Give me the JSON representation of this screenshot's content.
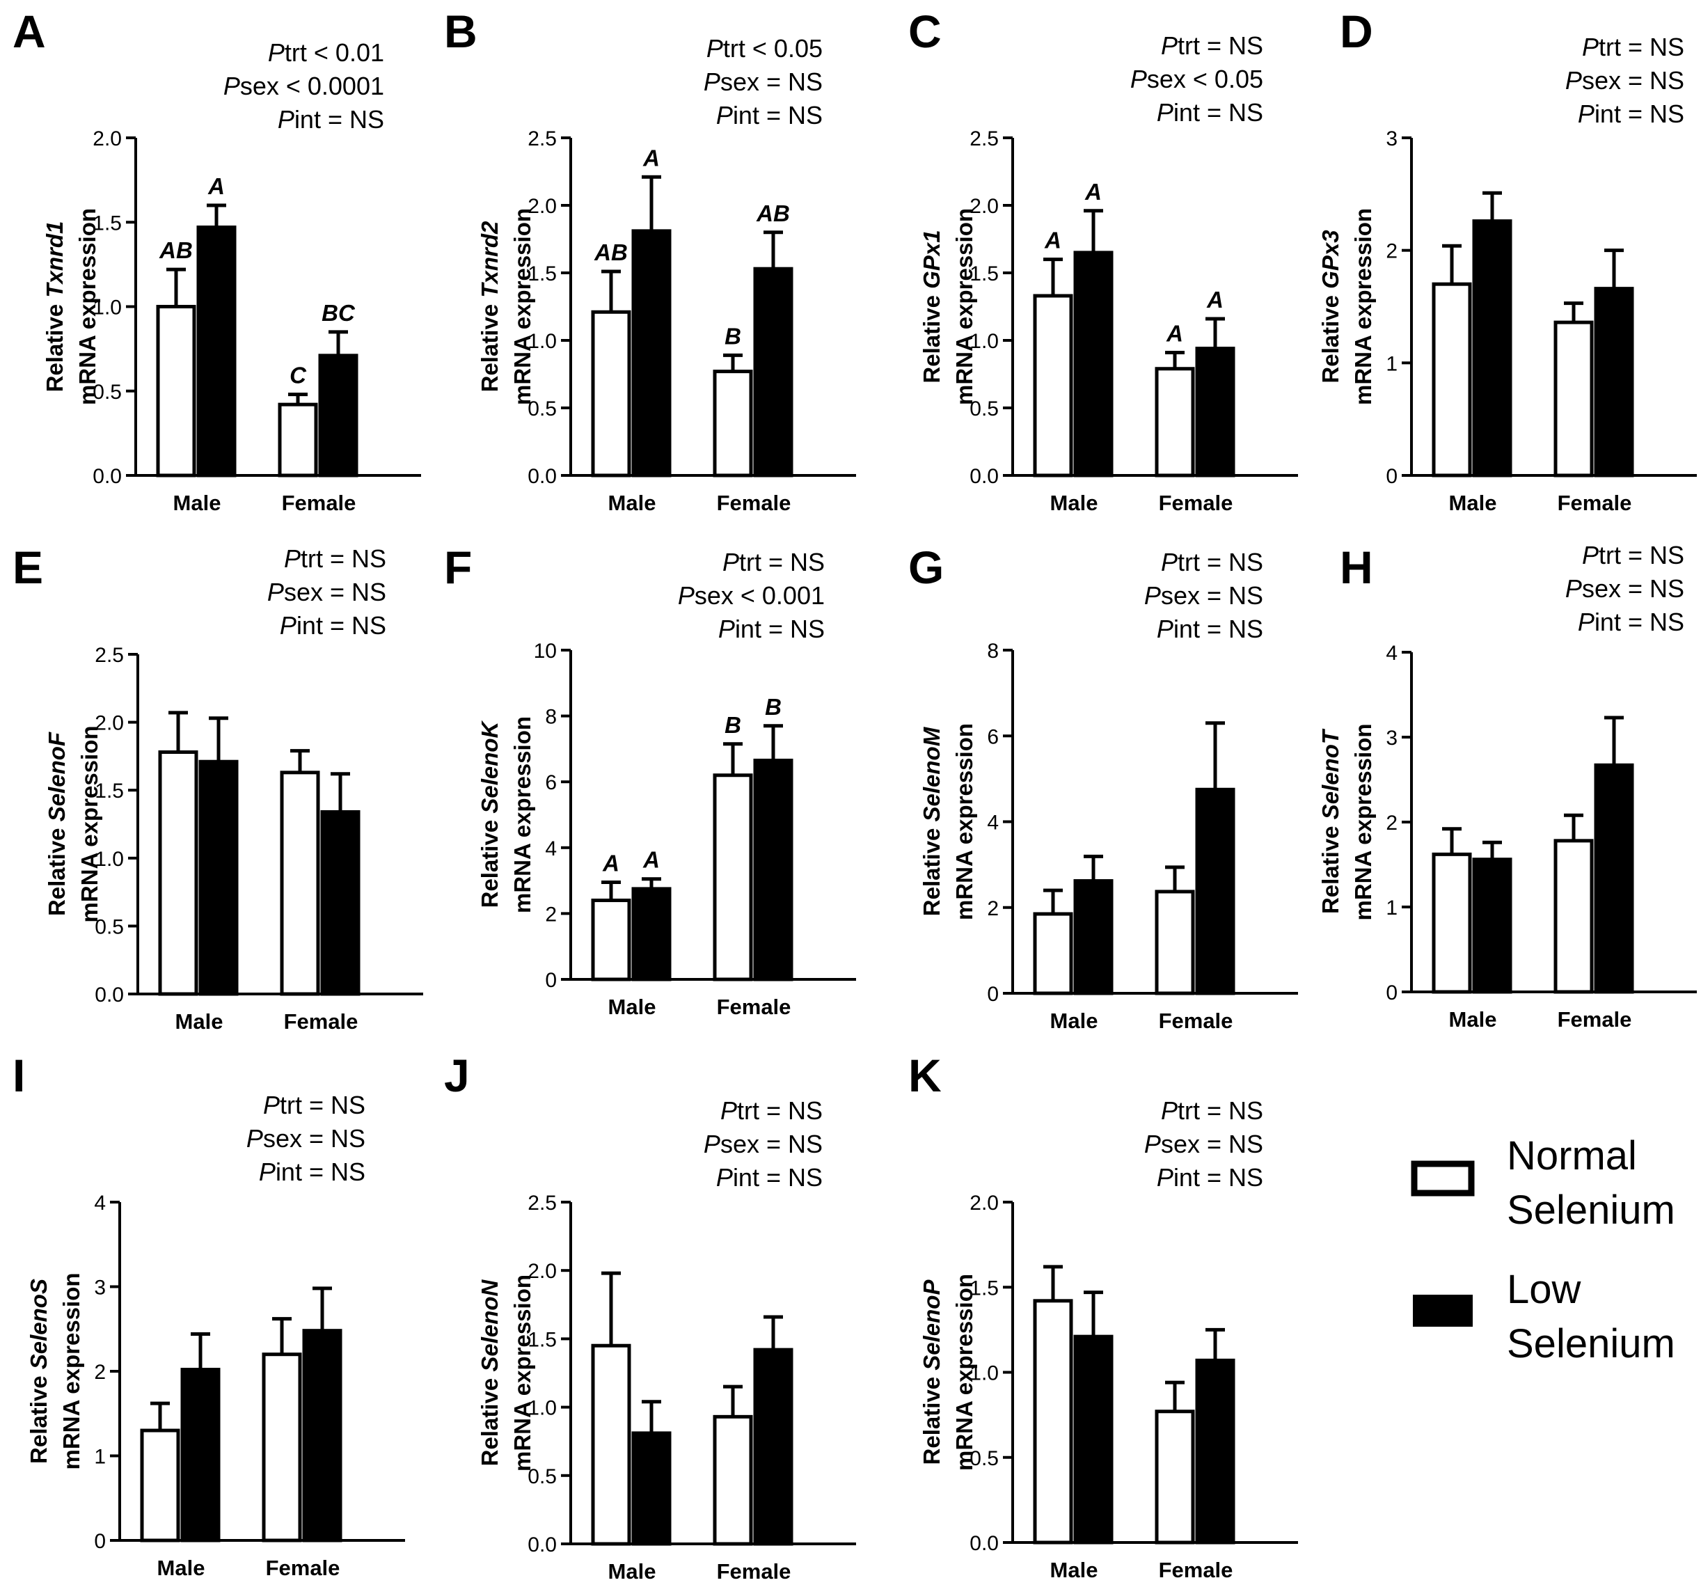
{
  "series": [
    {
      "name": "Normal Selenium",
      "legend_lines": [
        "Normal",
        "Selenium"
      ],
      "fill": "#ffffff",
      "stroke": "#000000"
    },
    {
      "name": "Low Selenium",
      "legend_lines": [
        "Low",
        "Selenium"
      ],
      "fill": "#000000",
      "stroke": "#000000"
    }
  ],
  "chart_data": [
    {
      "panel": "A",
      "type": "bar",
      "gene": "Txnrd1",
      "ylabel_prefix": "Relative ",
      "ylabel_line2": "mRNA expression",
      "categories": [
        "Male",
        "Female"
      ],
      "ylim": [
        0,
        2.0
      ],
      "yticks": [
        "0.0",
        "0.5",
        "1.0",
        "1.5",
        "2.0"
      ],
      "stats": [
        {
          "p": "P",
          "label": "trt < 0.01"
        },
        {
          "p": "P",
          "label": "sex < 0.0001"
        },
        {
          "p": "P",
          "label": "int = NS"
        }
      ],
      "series": [
        {
          "name": "Normal Selenium",
          "values": [
            1.0,
            0.42
          ],
          "errors": [
            0.22,
            0.06
          ],
          "sig": [
            "AB",
            "C"
          ]
        },
        {
          "name": "Low Selenium",
          "values": [
            1.47,
            0.71
          ],
          "errors": [
            0.13,
            0.14
          ],
          "sig": [
            "A",
            "BC"
          ]
        }
      ]
    },
    {
      "panel": "B",
      "type": "bar",
      "gene": "Txnrd2",
      "ylabel_prefix": "Relative ",
      "ylabel_line2": "mRNA expression",
      "categories": [
        "Male",
        "Female"
      ],
      "ylim": [
        0,
        2.5
      ],
      "yticks": [
        "0.0",
        "0.5",
        "1.0",
        "1.5",
        "2.0",
        "2.5"
      ],
      "stats": [
        {
          "p": "P",
          "label": "trt < 0.05"
        },
        {
          "p": "P",
          "label": "sex = NS"
        },
        {
          "p": "P",
          "label": "int = NS"
        }
      ],
      "series": [
        {
          "name": "Normal Selenium",
          "values": [
            1.21,
            0.77
          ],
          "errors": [
            0.3,
            0.12
          ],
          "sig": [
            "AB",
            "B"
          ]
        },
        {
          "name": "Low Selenium",
          "values": [
            1.81,
            1.53
          ],
          "errors": [
            0.4,
            0.27
          ],
          "sig": [
            "A",
            "AB"
          ]
        }
      ]
    },
    {
      "panel": "C",
      "type": "bar",
      "gene": "GPx1",
      "ylabel_prefix": "Relative ",
      "ylabel_line2": "mRNA expression",
      "categories": [
        "Male",
        "Female"
      ],
      "ylim": [
        0,
        2.5
      ],
      "yticks": [
        "0.0",
        "0.5",
        "1.0",
        "1.5",
        "2.0",
        "2.5"
      ],
      "stats": [
        {
          "p": "P",
          "label": "trt = NS"
        },
        {
          "p": "P",
          "label": "sex < 0.05"
        },
        {
          "p": "P",
          "label": "int = NS"
        }
      ],
      "series": [
        {
          "name": "Normal Selenium",
          "values": [
            1.33,
            0.79
          ],
          "errors": [
            0.27,
            0.12
          ],
          "sig": [
            "A",
            "A"
          ]
        },
        {
          "name": "Low Selenium",
          "values": [
            1.65,
            0.94
          ],
          "errors": [
            0.31,
            0.22
          ],
          "sig": [
            "A",
            "A"
          ]
        }
      ]
    },
    {
      "panel": "D",
      "type": "bar",
      "gene": "GPx3",
      "ylabel_prefix": "Relative ",
      "ylabel_line2": "mRNA expression",
      "categories": [
        "Male",
        "Female"
      ],
      "ylim": [
        0,
        3
      ],
      "yticks": [
        "0",
        "1",
        "2",
        "3"
      ],
      "stats": [
        {
          "p": "P",
          "label": "trt = NS"
        },
        {
          "p": "P",
          "label": "sex = NS"
        },
        {
          "p": "P",
          "label": "int = NS"
        }
      ],
      "series": [
        {
          "name": "Normal Selenium",
          "values": [
            1.7,
            1.36
          ],
          "errors": [
            0.34,
            0.17
          ],
          "sig": [
            "",
            ""
          ]
        },
        {
          "name": "Low Selenium",
          "values": [
            2.26,
            1.66
          ],
          "errors": [
            0.25,
            0.34
          ],
          "sig": [
            "",
            ""
          ]
        }
      ]
    },
    {
      "panel": "E",
      "type": "bar",
      "gene": "SelenoF",
      "ylabel_prefix": "Relative ",
      "ylabel_line2": "mRNA expression",
      "categories": [
        "Male",
        "Female"
      ],
      "ylim": [
        0,
        2.5
      ],
      "yticks": [
        "0.0",
        "0.5",
        "1.0",
        "1.5",
        "2.0",
        "2.5"
      ],
      "stats": [
        {
          "p": "P",
          "label": "trt = NS"
        },
        {
          "p": "P",
          "label": "sex = NS"
        },
        {
          "p": "P",
          "label": "int = NS"
        }
      ],
      "series": [
        {
          "name": "Normal Selenium",
          "values": [
            1.78,
            1.63
          ],
          "errors": [
            0.29,
            0.16
          ],
          "sig": [
            "",
            ""
          ]
        },
        {
          "name": "Low Selenium",
          "values": [
            1.71,
            1.34
          ],
          "errors": [
            0.32,
            0.28
          ],
          "sig": [
            "",
            ""
          ]
        }
      ]
    },
    {
      "panel": "F",
      "type": "bar",
      "gene": "SelenoK",
      "ylabel_prefix": "Relative ",
      "ylabel_line2": "mRNA expression",
      "categories": [
        "Male",
        "Female"
      ],
      "ylim": [
        0,
        10
      ],
      "yticks": [
        "0",
        "2",
        "4",
        "6",
        "8",
        "10"
      ],
      "stats": [
        {
          "p": "P",
          "label": "trt = NS"
        },
        {
          "p": "P",
          "label": "sex < 0.001"
        },
        {
          "p": "P",
          "label": "int = NS"
        }
      ],
      "series": [
        {
          "name": "Normal Selenium",
          "values": [
            2.4,
            6.2
          ],
          "errors": [
            0.55,
            0.95
          ],
          "sig": [
            "A",
            "B"
          ]
        },
        {
          "name": "Low Selenium",
          "values": [
            2.75,
            6.65
          ],
          "errors": [
            0.3,
            1.05
          ],
          "sig": [
            "A",
            "B"
          ]
        }
      ]
    },
    {
      "panel": "G",
      "type": "bar",
      "gene": "SelenoM",
      "ylabel_prefix": "Relative ",
      "ylabel_line2": "mRNA expression",
      "categories": [
        "Male",
        "Female"
      ],
      "ylim": [
        0,
        8
      ],
      "yticks": [
        "0",
        "2",
        "4",
        "6",
        "8"
      ],
      "stats": [
        {
          "p": "P",
          "label": "trt = NS"
        },
        {
          "p": "P",
          "label": "sex = NS"
        },
        {
          "p": "P",
          "label": "int = NS"
        }
      ],
      "series": [
        {
          "name": "Normal Selenium",
          "values": [
            1.85,
            2.37
          ],
          "errors": [
            0.55,
            0.57
          ],
          "sig": [
            "",
            ""
          ]
        },
        {
          "name": "Low Selenium",
          "values": [
            2.62,
            4.75
          ],
          "errors": [
            0.57,
            1.55
          ],
          "sig": [
            "",
            ""
          ]
        }
      ]
    },
    {
      "panel": "H",
      "type": "bar",
      "gene": "SelenoT",
      "ylabel_prefix": "Relative ",
      "ylabel_line2": "mRNA expression",
      "categories": [
        "Male",
        "Female"
      ],
      "ylim": [
        0,
        4
      ],
      "yticks": [
        "0",
        "1",
        "2",
        "3",
        "4"
      ],
      "stats": [
        {
          "p": "P",
          "label": "trt = NS"
        },
        {
          "p": "P",
          "label": "sex = NS"
        },
        {
          "p": "P",
          "label": "int = NS"
        }
      ],
      "series": [
        {
          "name": "Normal Selenium",
          "values": [
            1.62,
            1.78
          ],
          "errors": [
            0.3,
            0.3
          ],
          "sig": [
            "",
            ""
          ]
        },
        {
          "name": "Low Selenium",
          "values": [
            1.56,
            2.67
          ],
          "errors": [
            0.2,
            0.56
          ],
          "sig": [
            "",
            ""
          ]
        }
      ]
    },
    {
      "panel": "I",
      "type": "bar",
      "gene": "SelenoS",
      "ylabel_prefix": "Relative ",
      "ylabel_line2": "mRNA expression",
      "categories": [
        "Male",
        "Female"
      ],
      "ylim": [
        0,
        4
      ],
      "yticks": [
        "0",
        "1",
        "2",
        "3",
        "4"
      ],
      "stats": [
        {
          "p": "P",
          "label": "trt = NS"
        },
        {
          "p": "P",
          "label": "sex = NS"
        },
        {
          "p": "P",
          "label": "int = NS"
        }
      ],
      "series": [
        {
          "name": "Normal Selenium",
          "values": [
            1.3,
            2.2
          ],
          "errors": [
            0.32,
            0.42
          ],
          "sig": [
            "",
            ""
          ]
        },
        {
          "name": "Low Selenium",
          "values": [
            2.02,
            2.48
          ],
          "errors": [
            0.42,
            0.5
          ],
          "sig": [
            "",
            ""
          ]
        }
      ]
    },
    {
      "panel": "J",
      "type": "bar",
      "gene": "SelenoN",
      "ylabel_prefix": "Relative ",
      "ylabel_line2": "mRNA expression",
      "categories": [
        "Male",
        "Female"
      ],
      "ylim": [
        0,
        2.5
      ],
      "yticks": [
        "0.0",
        "0.5",
        "1.0",
        "1.5",
        "2.0",
        "2.5"
      ],
      "stats": [
        {
          "p": "P",
          "label": "trt = NS"
        },
        {
          "p": "P",
          "label": "sex = NS"
        },
        {
          "p": "P",
          "label": "int = NS"
        }
      ],
      "series": [
        {
          "name": "Normal Selenium",
          "values": [
            1.45,
            0.93
          ],
          "errors": [
            0.53,
            0.22
          ],
          "sig": [
            "",
            ""
          ]
        },
        {
          "name": "Low Selenium",
          "values": [
            0.81,
            1.42
          ],
          "errors": [
            0.23,
            0.24
          ],
          "sig": [
            "",
            ""
          ]
        }
      ]
    },
    {
      "panel": "K",
      "type": "bar",
      "gene": "SelenoP",
      "ylabel_prefix": "Relative ",
      "ylabel_line2": "mRNA expression",
      "categories": [
        "Male",
        "Female"
      ],
      "ylim": [
        0,
        2.0
      ],
      "yticks": [
        "0.0",
        "0.5",
        "1.0",
        "1.5",
        "2.0"
      ],
      "stats": [
        {
          "p": "P",
          "label": "trt = NS"
        },
        {
          "p": "P",
          "label": "sex = NS"
        },
        {
          "p": "P",
          "label": "int = NS"
        }
      ],
      "series": [
        {
          "name": "Normal Selenium",
          "values": [
            1.42,
            0.77
          ],
          "errors": [
            0.2,
            0.17
          ],
          "sig": [
            "",
            ""
          ]
        },
        {
          "name": "Low Selenium",
          "values": [
            1.21,
            1.07
          ],
          "errors": [
            0.26,
            0.18
          ],
          "sig": [
            "",
            ""
          ]
        }
      ]
    }
  ]
}
